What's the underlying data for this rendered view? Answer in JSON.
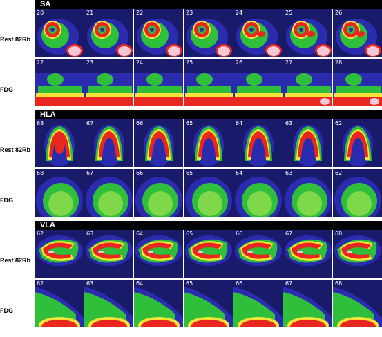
{
  "sections": [
    {
      "header": "SA",
      "rows": [
        {
          "label": "Rest 82Rb",
          "slices": [
            "20",
            "21",
            "22",
            "23",
            "24",
            "25",
            "26"
          ],
          "tracer": "rb"
        },
        {
          "label": "FDG",
          "slices": [
            "22",
            "23",
            "24",
            "25",
            "26",
            "27",
            "28"
          ],
          "tracer": "fdg"
        }
      ]
    },
    {
      "header": "HLA",
      "rows": [
        {
          "label": "Rest 82Rb",
          "slices": [
            "68",
            "67",
            "66",
            "65",
            "64",
            "63",
            "62"
          ],
          "tracer": "rb"
        },
        {
          "label": "FDG",
          "slices": [
            "68",
            "67",
            "66",
            "65",
            "64",
            "63",
            "62"
          ],
          "tracer": "fdg"
        }
      ]
    },
    {
      "header": "VLA",
      "rows": [
        {
          "label": "Rest 82Rb",
          "slices": [
            "62",
            "63",
            "64",
            "65",
            "66",
            "67",
            "68"
          ],
          "tracer": "rb"
        },
        {
          "label": "FDG",
          "slices": [
            "62",
            "63",
            "64",
            "65",
            "66",
            "67",
            "68"
          ],
          "tracer": "fdg"
        }
      ]
    }
  ],
  "colors": {
    "background": "#1a1a6a",
    "low": "#2b2bb0",
    "mid": "#2fbf3a",
    "high": "#f7e23a",
    "peak": "#e8281f",
    "max": "#f8c8d8"
  }
}
